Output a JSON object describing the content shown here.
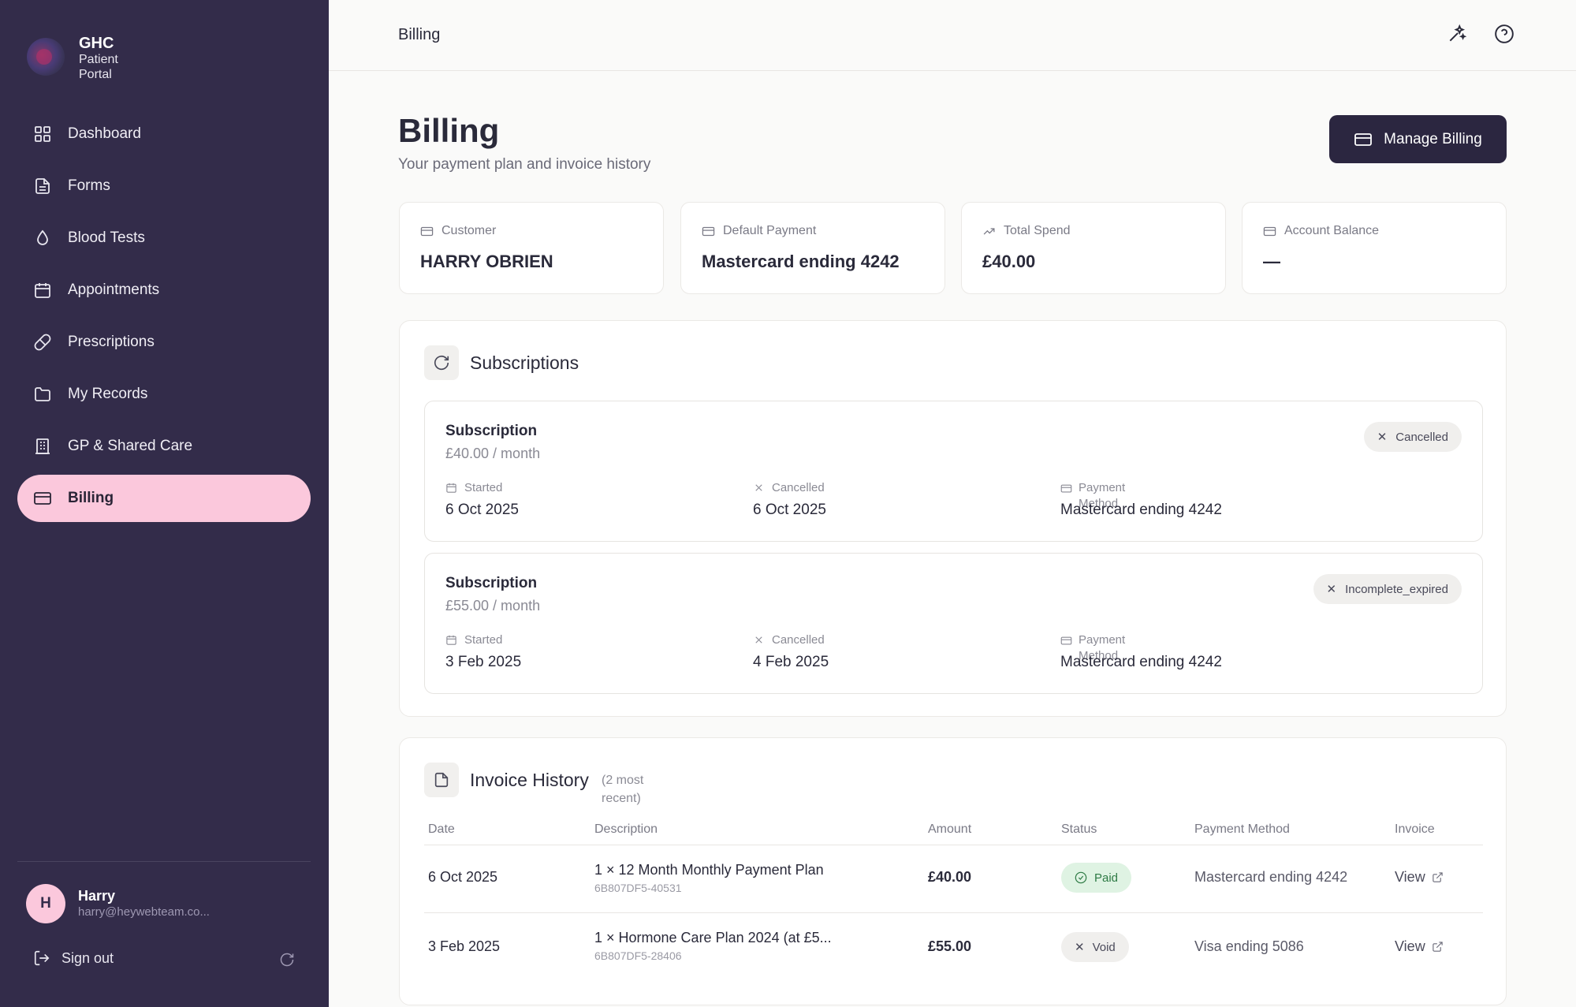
{
  "brand": {
    "name": "GHC",
    "line2": "Patient",
    "line3": "Portal"
  },
  "sidebar": {
    "items": [
      {
        "label": "Dashboard",
        "icon": "grid-icon"
      },
      {
        "label": "Forms",
        "icon": "document-icon"
      },
      {
        "label": "Blood Tests",
        "icon": "droplet-icon"
      },
      {
        "label": "Appointments",
        "icon": "calendar-icon"
      },
      {
        "label": "Prescriptions",
        "icon": "pill-icon"
      },
      {
        "label": "My Records",
        "icon": "folder-icon"
      },
      {
        "label": "GP & Shared Care",
        "icon": "building-icon"
      },
      {
        "label": "Billing",
        "icon": "credit-card-icon",
        "active": true
      }
    ],
    "user": {
      "initial": "H",
      "name": "Harry",
      "email": "harry@heywebteam.co..."
    },
    "sign_out_label": "Sign out"
  },
  "topbar": {
    "title": "Billing"
  },
  "page": {
    "title": "Billing",
    "subtitle": "Your payment plan and invoice history",
    "manage_button": "Manage Billing"
  },
  "stats": [
    {
      "label": "Customer",
      "value": "HARRY OBRIEN"
    },
    {
      "label": "Default Payment",
      "value": "Mastercard ending 4242"
    },
    {
      "label": "Total Spend",
      "value": "£40.00"
    },
    {
      "label": "Account Balance",
      "value": "—"
    }
  ],
  "subscriptions": {
    "title": "Subscriptions",
    "items": [
      {
        "title": "Subscription",
        "price": "£40.00 / month",
        "status": "Cancelled",
        "started_label": "Started",
        "started": "6 Oct 2025",
        "cancelled_label": "Cancelled",
        "cancelled": "6 Oct 2025",
        "payment_label_1": "Payment",
        "payment_label_2": "Method",
        "payment": "Mastercard ending 4242"
      },
      {
        "title": "Subscription",
        "price": "£55.00 / month",
        "status": "Incomplete_expired",
        "started_label": "Started",
        "started": "3 Feb 2025",
        "cancelled_label": "Cancelled",
        "cancelled": "4 Feb 2025",
        "payment_label_1": "Payment",
        "payment_label_2": "Method",
        "payment": "Mastercard ending 4242"
      }
    ]
  },
  "invoices": {
    "title": "Invoice History",
    "count_line1": "(2 most",
    "count_line2": "recent)",
    "columns": [
      "Date",
      "Description",
      "Amount",
      "Status",
      "Payment Method",
      "Invoice"
    ],
    "rows": [
      {
        "date": "6 Oct 2025",
        "description": "1 × 12 Month Monthly Payment Plan",
        "id": "6B807DF5-40531",
        "amount": "£40.00",
        "status": "Paid",
        "payment": "Mastercard ending 4242",
        "invoice": "View"
      },
      {
        "date": "3 Feb 2025",
        "description": "1 × Hormone Care Plan 2024 (at £5...",
        "id": "6B807DF5-28406",
        "amount": "£55.00",
        "status": "Void",
        "payment": "Visa ending 5086",
        "invoice": "View"
      }
    ]
  },
  "colors": {
    "sidebar_bg": "#332c4a",
    "active_nav_bg": "#fbc8dc",
    "primary_button": "#2b2640",
    "paid_bg": "#dff3e3",
    "paid_text": "#2d7a44"
  }
}
